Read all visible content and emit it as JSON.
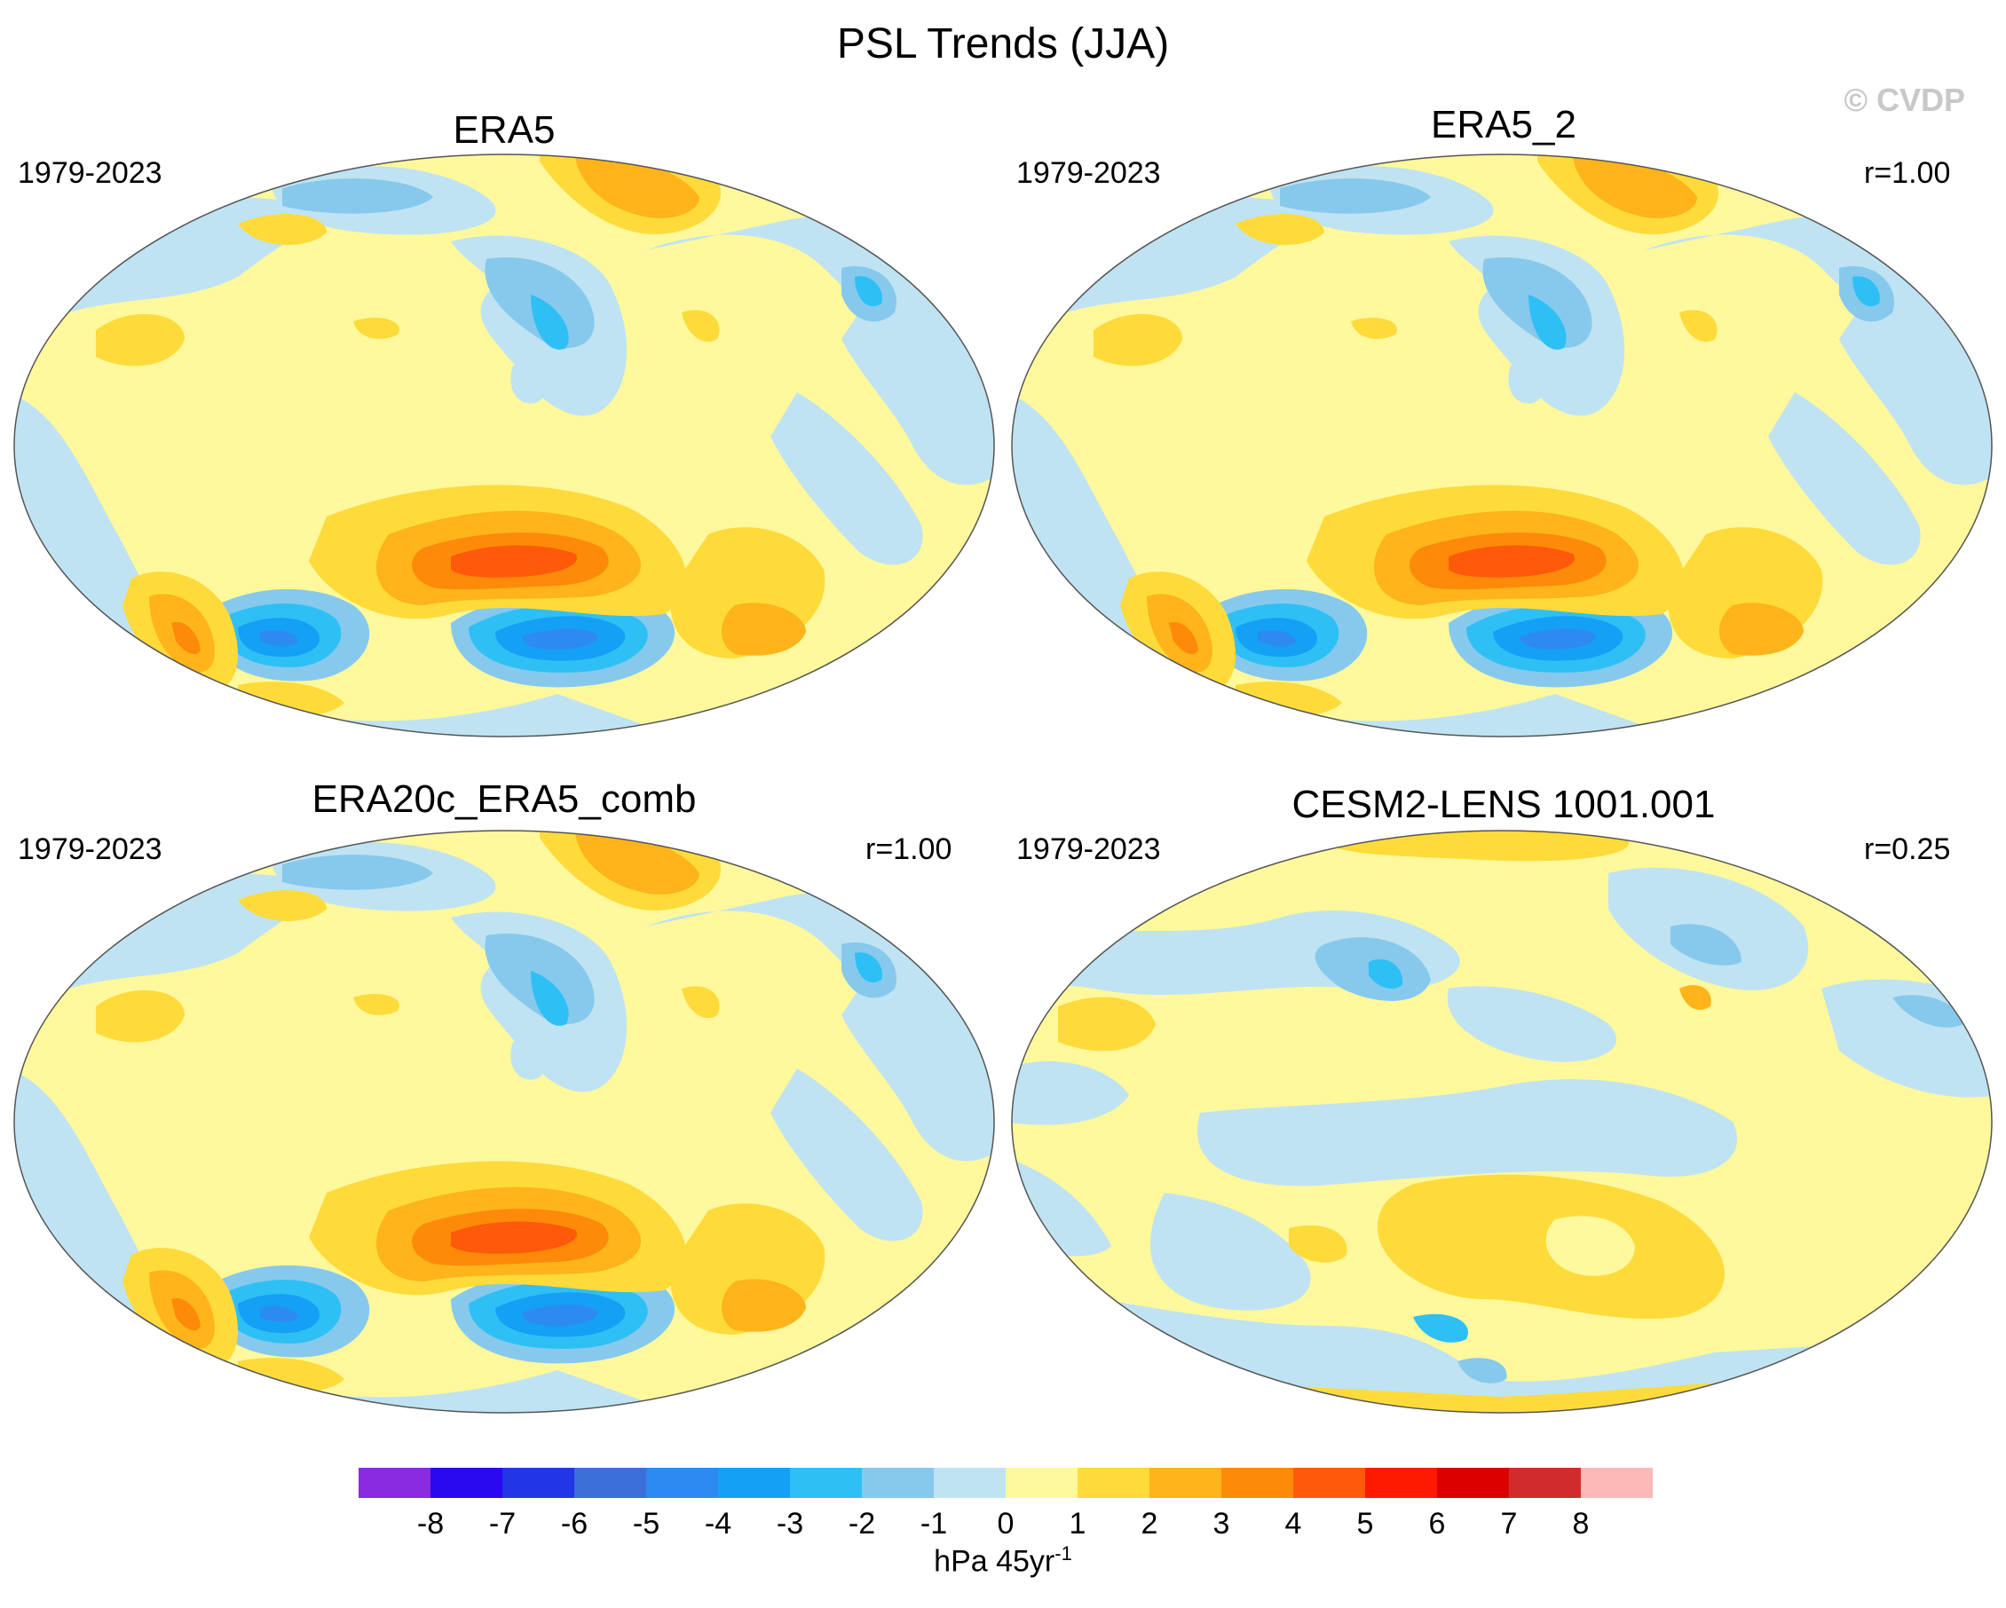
{
  "figure": {
    "title": "PSL Trends (JJA)",
    "copyright": "© CVDP"
  },
  "chart_data": [
    {
      "type": "map-contour",
      "title": "ERA5",
      "period": "1979-2023",
      "correlation": null,
      "variable": "PSL",
      "season": "JJA",
      "projection": "Robinson"
    },
    {
      "type": "map-contour",
      "title": "ERA5_2",
      "period": "1979-2023",
      "correlation": "r=1.00",
      "variable": "PSL",
      "season": "JJA",
      "projection": "Robinson"
    },
    {
      "type": "map-contour",
      "title": "ERA20c_ERA5_comb",
      "period": "1979-2023",
      "correlation": "r=1.00",
      "variable": "PSL",
      "season": "JJA",
      "projection": "Robinson"
    },
    {
      "type": "map-contour",
      "title": "CESM2-LENS 1001.001",
      "period": "1979-2023",
      "correlation": "r=0.25",
      "variable": "PSL",
      "season": "JJA",
      "projection": "Robinson"
    }
  ],
  "colorbar": {
    "levels": [
      "-8",
      "-7",
      "-6",
      "-5",
      "-4",
      "-3",
      "-2",
      "-1",
      "0",
      "1",
      "2",
      "3",
      "4",
      "5",
      "6",
      "7",
      "8"
    ],
    "colors": [
      "#8a2be2",
      "#2a08f0",
      "#2236e6",
      "#3d6fd9",
      "#2d8af0",
      "#14a0f5",
      "#2ec0f5",
      "#87c9ec",
      "#bfe3f2",
      "#fff89d",
      "#fedb3a",
      "#feb41a",
      "#fe8a0a",
      "#fe5a0a",
      "#fe1a00",
      "#dc0000",
      "#d02c2c",
      "#fdb8b8"
    ],
    "units_main": "hPa 45yr",
    "units_sup": "-1"
  }
}
